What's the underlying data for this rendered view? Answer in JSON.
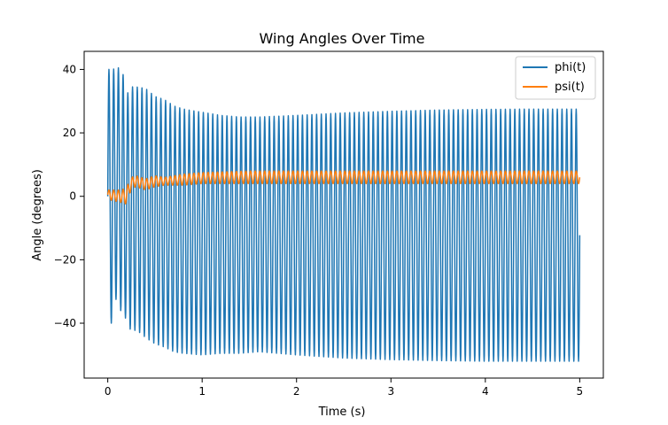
{
  "chart_data": {
    "type": "line",
    "title": "Wing Angles Over Time",
    "xlabel": "Time (s)",
    "ylabel": "Angle (degrees)",
    "xlim": [
      -0.25,
      5.25
    ],
    "ylim": [
      -57.3,
      45.7
    ],
    "xticks": [
      0,
      1,
      2,
      3,
      4,
      5
    ],
    "xtick_labels": [
      "0",
      "1",
      "2",
      "3",
      "4",
      "5"
    ],
    "yticks": [
      -40,
      -20,
      0,
      20,
      40
    ],
    "ytick_labels": [
      "−40",
      "−20",
      "0",
      "20",
      "40"
    ],
    "grid": false,
    "legend_position": "top-right",
    "series": [
      {
        "name": "phi(t)",
        "color": "#1f77b4",
        "oscillation_period_s": 0.05,
        "x_start": 0,
        "x_end": 5,
        "peak_envelope": {
          "t": [
            0,
            0.05,
            0.1,
            0.15,
            0.2,
            0.25,
            0.3,
            0.4,
            0.5,
            0.6,
            0.7,
            0.8,
            1.0,
            1.2,
            1.4,
            1.6,
            2.0,
            2.5,
            3.0,
            3.5,
            4.0,
            4.5,
            5.0
          ],
          "v": [
            40,
            40,
            40.5,
            40.5,
            32,
            34.5,
            34.5,
            34,
            31.5,
            30.5,
            28.5,
            27.5,
            26.5,
            25.5,
            25,
            25,
            25.5,
            26.3,
            26.8,
            27.2,
            27.4,
            27.5,
            27.5
          ]
        },
        "trough_envelope": {
          "t": [
            0,
            0.05,
            0.1,
            0.15,
            0.2,
            0.25,
            0.3,
            0.4,
            0.5,
            0.6,
            0.7,
            0.8,
            1.0,
            1.2,
            1.4,
            1.6,
            2.0,
            2.5,
            3.0,
            3.5,
            4.0,
            4.5,
            5.0
          ],
          "v": [
            -40,
            -40,
            -30,
            -38,
            -38.5,
            -43,
            -42,
            -44.5,
            -46.5,
            -47.5,
            -49,
            -49.5,
            -50,
            -49.5,
            -49.5,
            -49,
            -50,
            -51,
            -51.5,
            -51.8,
            -52,
            -52,
            -52
          ]
        }
      },
      {
        "name": "psi(t)",
        "color": "#ff7f0e",
        "oscillation_period_s": 0.05,
        "x_start": 0,
        "x_end": 5,
        "peak_envelope": {
          "t": [
            0,
            0.15,
            0.2,
            0.25,
            0.3,
            0.4,
            0.5,
            0.6,
            0.8,
            1.0,
            1.5,
            2.0,
            3.0,
            4.0,
            5.0
          ],
          "v": [
            2,
            2,
            3,
            6,
            6.5,
            5.5,
            6.5,
            6,
            7,
            7.5,
            8,
            8,
            8,
            8,
            8
          ]
        },
        "trough_envelope": {
          "t": [
            0,
            0.15,
            0.2,
            0.25,
            0.3,
            0.4,
            0.5,
            0.6,
            0.8,
            1.0,
            1.5,
            2.0,
            3.0,
            4.0,
            5.0
          ],
          "v": [
            -1,
            -2,
            -2.5,
            2.5,
            3,
            2,
            3,
            3.5,
            3.5,
            4,
            4,
            4,
            4,
            4,
            4
          ]
        }
      }
    ]
  }
}
